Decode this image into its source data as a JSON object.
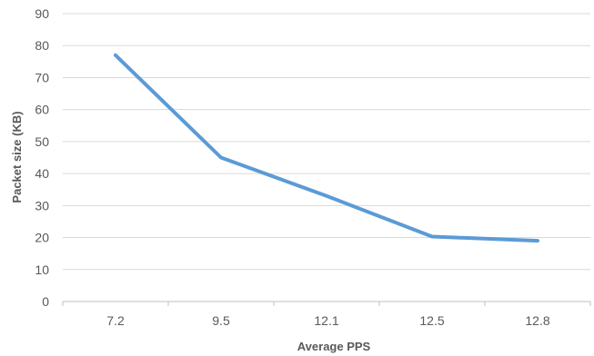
{
  "chart_data": {
    "type": "line",
    "title": "",
    "xlabel": "Average PPS",
    "ylabel": "Packet size (KB)",
    "categories": [
      "7.2",
      "9.5",
      "12.1",
      "12.5",
      "12.8"
    ],
    "series": [
      {
        "values": [
          77,
          45,
          33,
          20.3,
          19
        ]
      }
    ],
    "ylim": [
      0,
      90
    ],
    "yticks": [
      "0",
      "10",
      "20",
      "30",
      "40",
      "50",
      "60",
      "70",
      "80",
      "90"
    ],
    "grid": true,
    "legend": "none",
    "colors": {
      "line": "#5b9bd5"
    }
  }
}
